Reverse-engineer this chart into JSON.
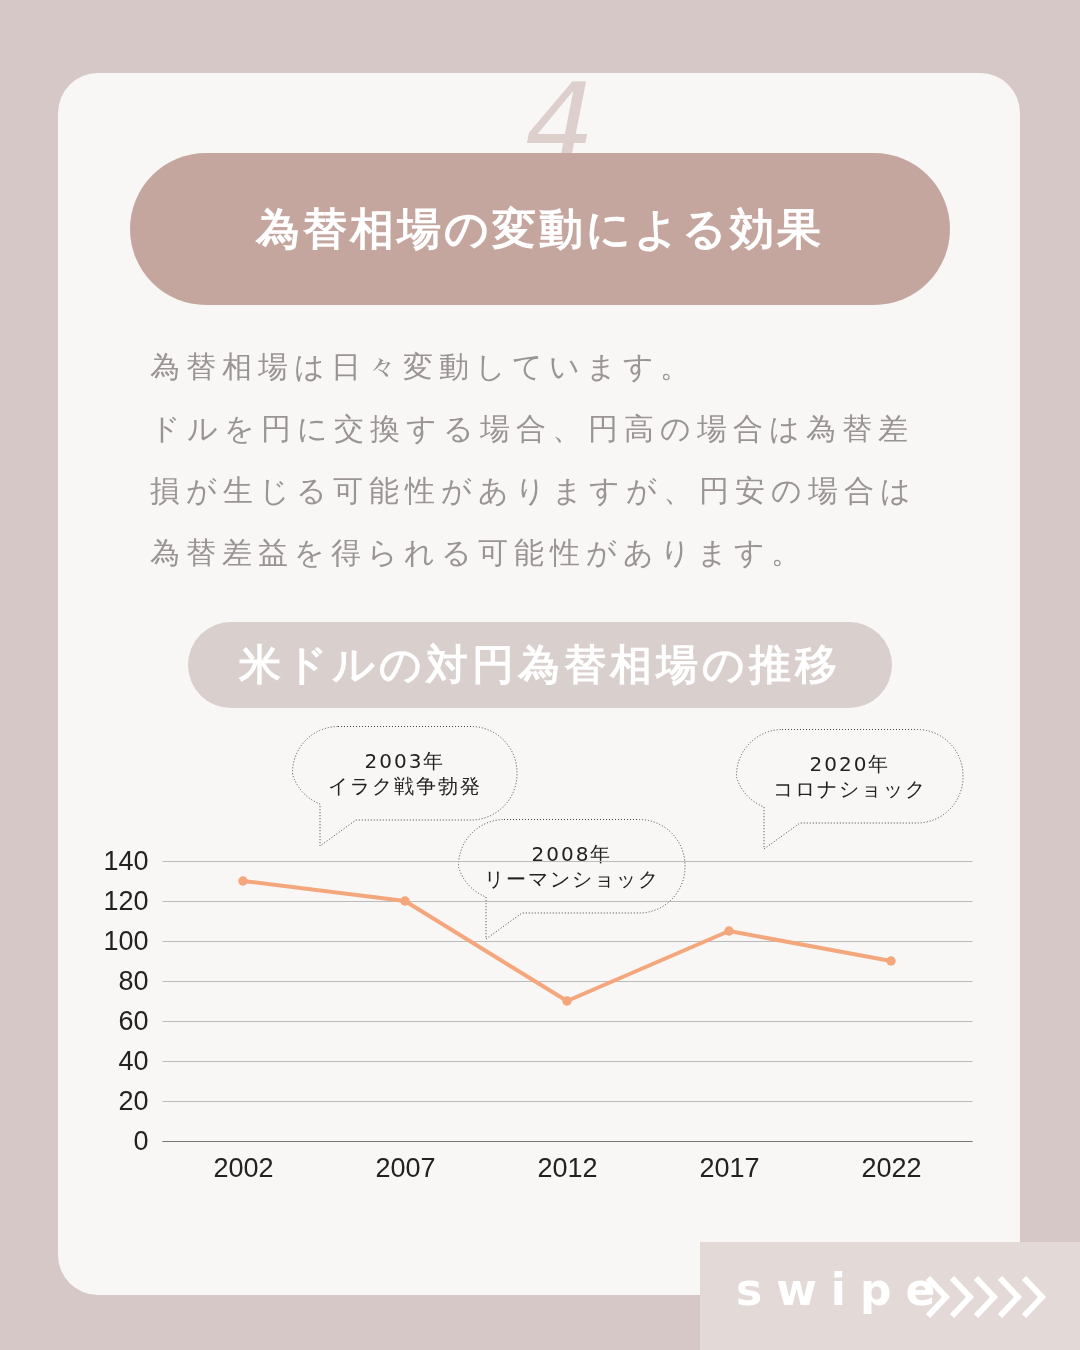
{
  "chart_data": {
    "type": "line",
    "title": "為替相場の変動による効果",
    "subtitle": "米ドルの対円為替相場の推移",
    "annotations": [
      "4",
      "為替相場は日々変動しています。",
      "ドルを円に交換する場合、円高の場合は為替差損が生じる可能性がありますが、円安の場合は為替差益を得られる可能性があります。",
      "2003年",
      "イラク戦争勃発",
      "2008年",
      "リーマンショック",
      "2020年",
      "コロナショック",
      "swipe"
    ],
    "categories": [
      "2002",
      "2007",
      "2012",
      "2017",
      "2022"
    ],
    "series": [
      {
        "color": "#f4a77c",
        "values": [
          130,
          120,
          70,
          105,
          90
        ]
      }
    ],
    "ylim": [
      0,
      140
    ],
    "yticks": [
      0,
      20,
      40,
      60,
      80,
      100,
      120,
      140
    ],
    "grid": "y",
    "marker": "circle",
    "line_style": "solid"
  }
}
